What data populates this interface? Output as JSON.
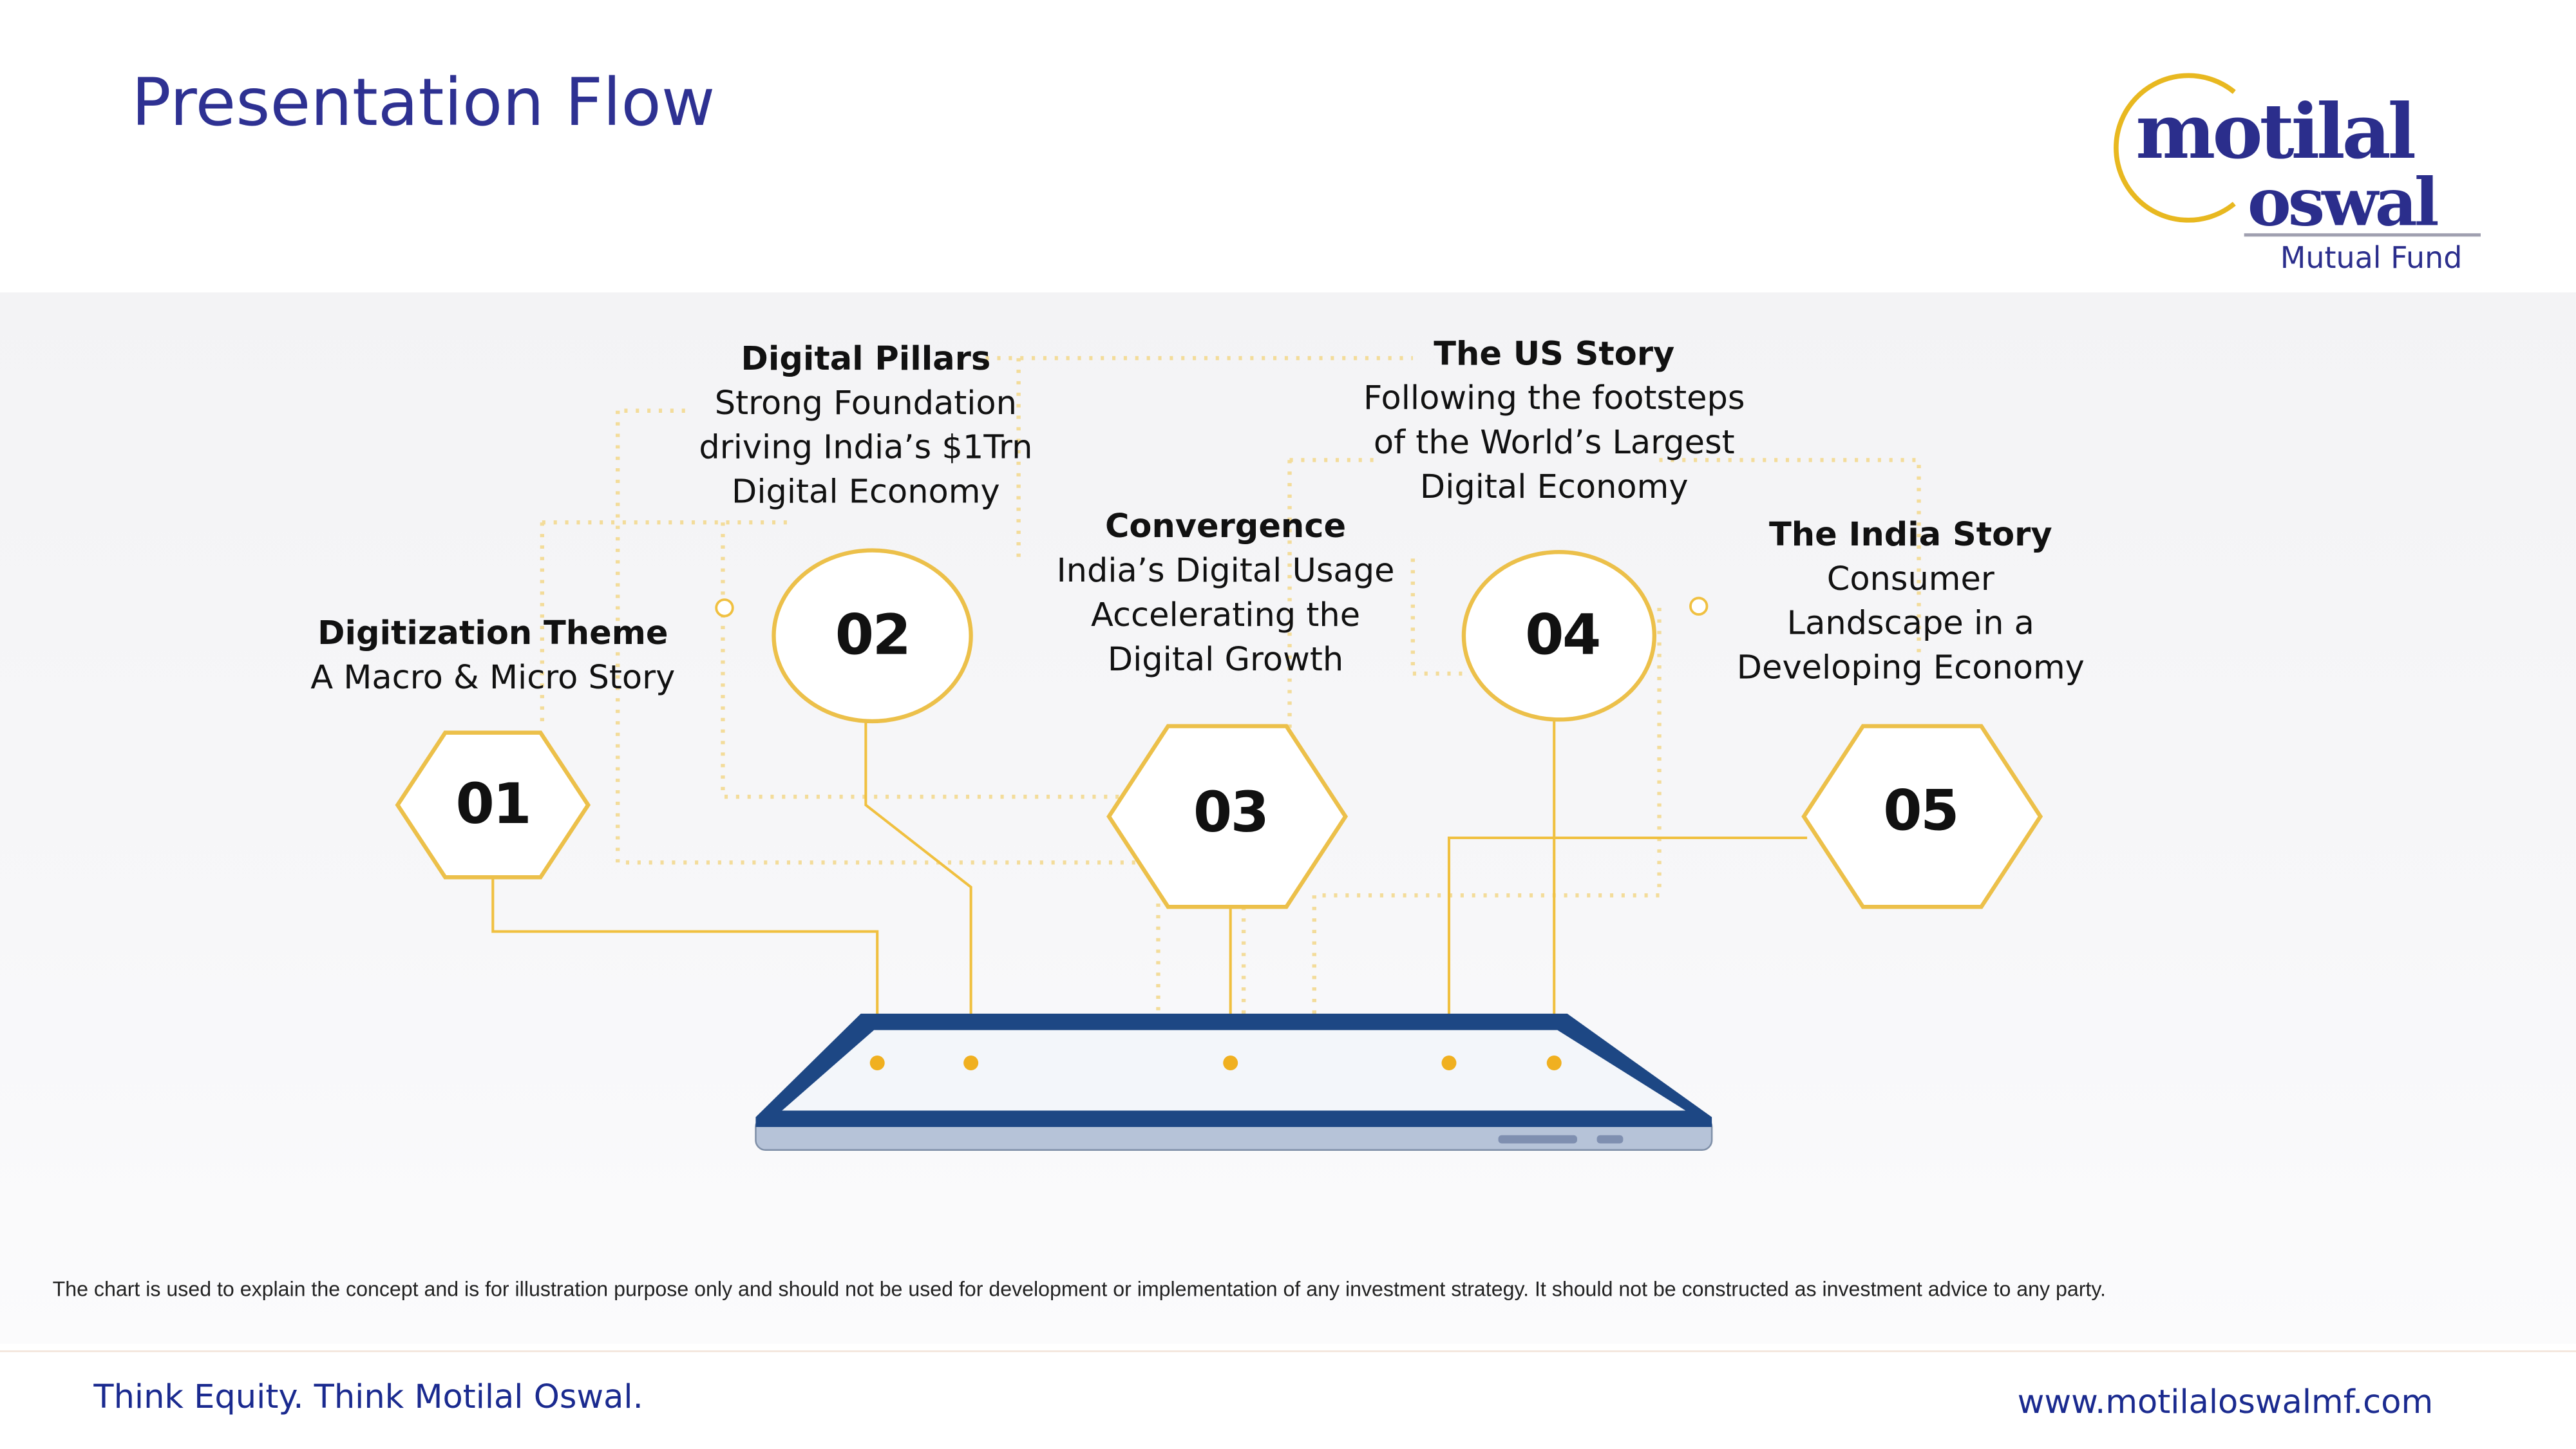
{
  "header": {
    "title": "Presentation Flow"
  },
  "logo": {
    "line1": "motilal",
    "line2": "oswal",
    "line3": "Mutual Fund"
  },
  "flow": [
    {
      "number": "01",
      "shape": "hexagon",
      "heading": "Digitization Theme",
      "lines": [
        "A Macro & Micro Story"
      ]
    },
    {
      "number": "02",
      "shape": "circle",
      "heading": "Digital Pillars",
      "lines": [
        "Strong Foundation",
        "driving India’s $1Trn",
        "Digital Economy"
      ]
    },
    {
      "number": "03",
      "shape": "hexagon",
      "heading": "Convergence",
      "lines": [
        "India’s Digital Usage",
        "Accelerating the",
        "Digital Growth"
      ]
    },
    {
      "number": "04",
      "shape": "circle",
      "heading": "The US Story",
      "lines": [
        "Following the footsteps",
        "of the World’s Largest",
        "Digital Economy"
      ]
    },
    {
      "number": "05",
      "shape": "hexagon",
      "heading": "The India Story",
      "lines": [
        "Consumer",
        "Landscape in a",
        "Developing Economy"
      ]
    }
  ],
  "disclaimer": "The chart  is used to explain the concept and is for illustration purpose only and should not be used for development or implementation of any investment strategy. It should not be constructed as investment advice to any party.",
  "footer": {
    "tagline": "Think Equity. Think Motilal Oswal.",
    "website": "www.motilaloswalmf.com"
  },
  "colors": {
    "brand_blue": "#2e3192",
    "accent_gold": "#f0c040",
    "tablet_frame": "#1d4784"
  }
}
